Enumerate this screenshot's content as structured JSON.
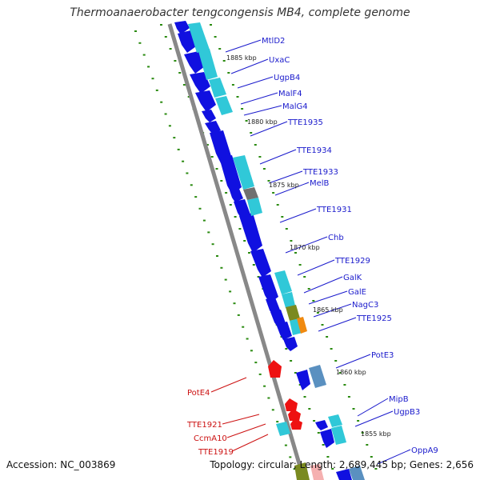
{
  "title": "Thermoanaerobacter tengcongensis MB4, complete genome",
  "footer": {
    "accession": "Accession: NC_003869",
    "topology": "Topology: circular; Length: 2,689,445 bp; Genes: 2,656"
  },
  "colors": {
    "plus_strand_label": "#1a1acc",
    "minus_strand_label": "#cc1111",
    "gene_blue": "#1010e0",
    "gene_cyan": "#30c8d8",
    "gene_red": "#ee1111",
    "gene_gray": "#707070",
    "gene_olive": "#7a8a20",
    "gene_orange": "#f08a10",
    "gene_steel": "#5a90c0",
    "scale_green": "#2a8a10",
    "backbone": "#888888"
  },
  "scale_labels": [
    "1885 kbp",
    "1880 kbp",
    "1875 kbp",
    "1870 kbp",
    "1865 kbp",
    "1860 kbp",
    "1855 kbp"
  ],
  "genes_plus": [
    {
      "label": "MtlD2"
    },
    {
      "label": "UxaC"
    },
    {
      "label": "UgpB4"
    },
    {
      "label": "MalF4"
    },
    {
      "label": "MalG4"
    },
    {
      "label": "TTE1935"
    },
    {
      "label": "TTE1934"
    },
    {
      "label": "TTE1933"
    },
    {
      "label": "MelB"
    },
    {
      "label": "TTE1931"
    },
    {
      "label": "Chb"
    },
    {
      "label": "TTE1929"
    },
    {
      "label": "GalK"
    },
    {
      "label": "GalE"
    },
    {
      "label": "NagC3"
    },
    {
      "label": "TTE1925"
    },
    {
      "label": "PotE3"
    },
    {
      "label": "MipB"
    },
    {
      "label": "UgpB3"
    },
    {
      "label": "OppA9"
    }
  ],
  "genes_minus": [
    {
      "label": "PotE4"
    },
    {
      "label": "TTE1921"
    },
    {
      "label": "CcmA10"
    },
    {
      "label": "TTE1919"
    }
  ]
}
